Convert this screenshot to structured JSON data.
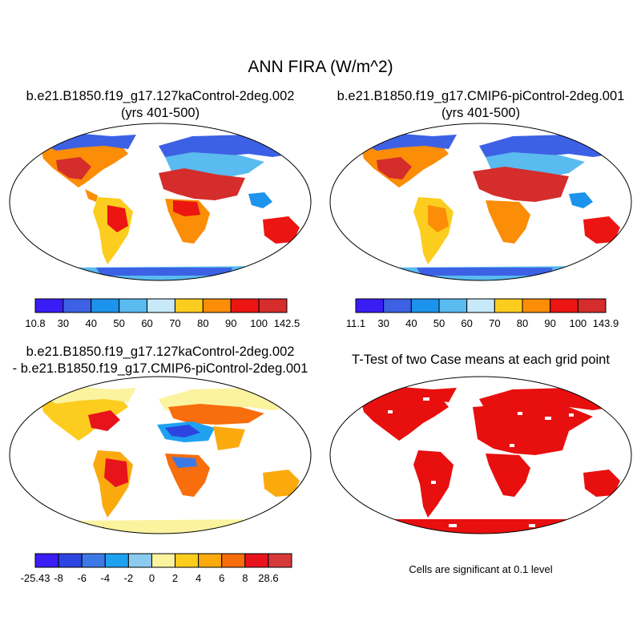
{
  "main_title": "ANN FIRA (W/m^2)",
  "panels": {
    "top_left": {
      "title_line1": "b.e21.B1850.f19_g17.127kaControl-2deg.002",
      "title_line2": "(yrs 401-500)",
      "colorbar": {
        "colors": [
          "#3a1cf4",
          "#3d61e4",
          "#1c93ec",
          "#59bbef",
          "#c7e9f9",
          "#fccd1e",
          "#fb8d07",
          "#ec1512",
          "#d52c2c"
        ],
        "labels": [
          "10.8",
          "30",
          "40",
          "50",
          "60",
          "70",
          "80",
          "90",
          "100",
          "142.5"
        ]
      }
    },
    "top_right": {
      "title_line1": "b.e21.B1850.f19_g17.CMIP6-piControl-2deg.001",
      "title_line2": "(yrs 401-500)",
      "colorbar": {
        "colors": [
          "#3a1cf4",
          "#3d61e4",
          "#1c93ec",
          "#59bbef",
          "#c7e9f9",
          "#fccd1e",
          "#fb8d07",
          "#ec1512",
          "#d52c2c"
        ],
        "labels": [
          "11.1",
          "30",
          "40",
          "50",
          "60",
          "70",
          "80",
          "90",
          "100",
          "143.9"
        ]
      }
    },
    "bottom_left": {
      "title_line1": "b.e21.B1850.f19_g17.127kaControl-2deg.002",
      "title_line2": "- b.e21.B1850.f19_g17.CMIP6-piControl-2deg.001",
      "colorbar": {
        "colors": [
          "#3a1cf4",
          "#2d45e0",
          "#3d79e6",
          "#1fa1f0",
          "#8ccbf0",
          "#fbf39e",
          "#fccd1e",
          "#fbaa0e",
          "#f86d0c",
          "#e8141b",
          "#d53a38"
        ],
        "labels": [
          "-25.43",
          "-8",
          "-6",
          "-4",
          "-2",
          "0",
          "2",
          "4",
          "6",
          "8",
          "28.6"
        ]
      }
    },
    "bottom_right": {
      "title": "T-Test of two Case means at each grid point",
      "note": "Cells are significant at 0.1 level",
      "fill_color": "#e80f0f"
    }
  }
}
